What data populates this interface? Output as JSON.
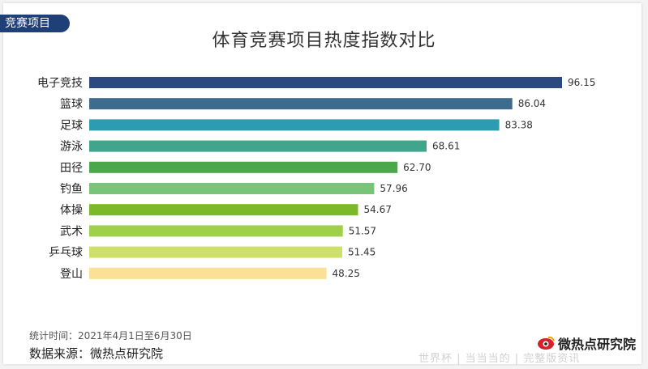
{
  "tag": "竞赛项目",
  "footer": {
    "period": "统计时间：2021年4月1日至6月30日",
    "source": "数据来源：微热点研究院",
    "logo_text": "微热点研究院",
    "watermark": "世界杯 | 当当当的 | 完整版资讯"
  },
  "chart_data": {
    "type": "bar",
    "orientation": "horizontal",
    "title": "体育竞赛项目热度指数对比",
    "categories": [
      "电子竞技",
      "篮球",
      "足球",
      "游泳",
      "田径",
      "钓鱼",
      "体操",
      "武术",
      "乒乓球",
      "登山"
    ],
    "values": [
      96.15,
      86.04,
      83.38,
      68.61,
      62.7,
      57.96,
      54.67,
      51.57,
      51.45,
      48.25
    ],
    "value_labels": [
      "96.15",
      "86.04",
      "83.38",
      "68.61",
      "62.70",
      "57.96",
      "54.67",
      "51.57",
      "51.45",
      "48.25"
    ],
    "colors": [
      "#2a4a7f",
      "#3d6b8e",
      "#2d9bb0",
      "#3fa68b",
      "#4aa84a",
      "#7ac47a",
      "#7cb82a",
      "#9fd04a",
      "#cfe06a",
      "#fbe196"
    ],
    "xlim": [
      0,
      100
    ],
    "grid": false,
    "legend": "none"
  }
}
